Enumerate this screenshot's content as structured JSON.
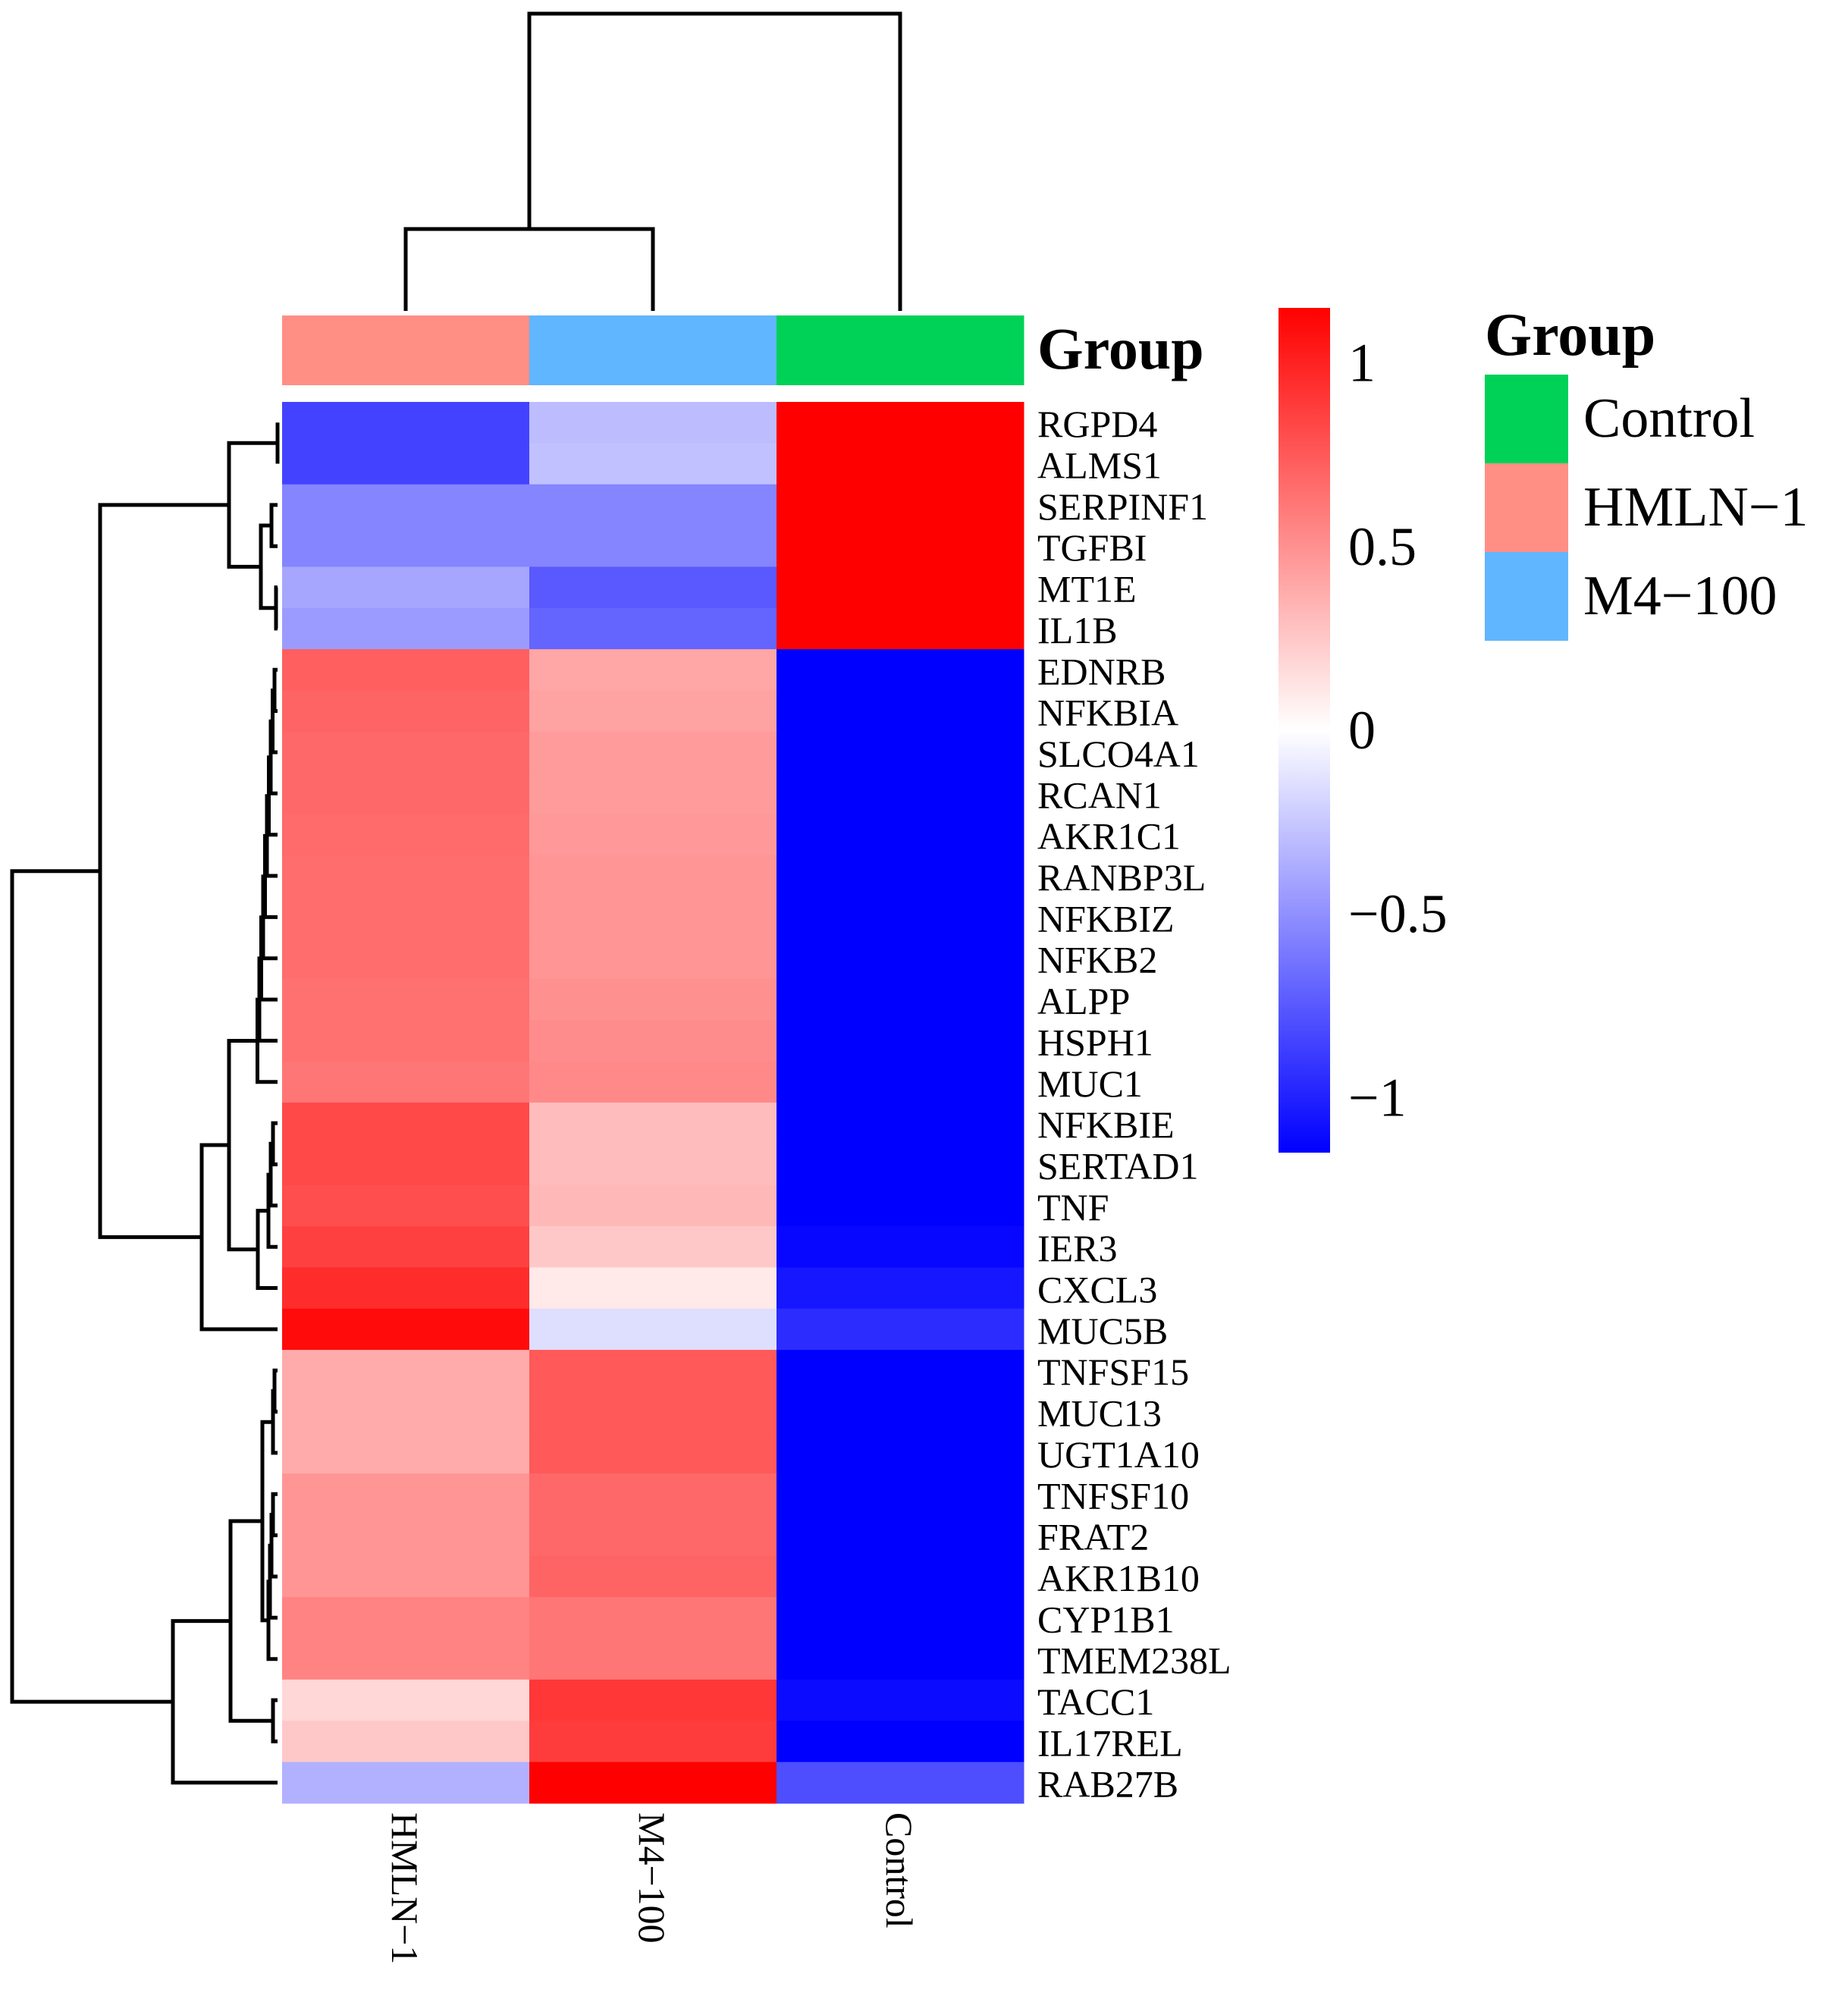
{
  "chart_data": {
    "type": "heatmap",
    "columns": [
      "HMLN-1",
      "M4−100",
      "Control"
    ],
    "rows": [
      "RGPD4",
      "ALMS1",
      "SERPINF1",
      "TGFBI",
      "MT1E",
      "IL1B",
      "EDNRB",
      "NFKBIA",
      "SLCO4A1",
      "RCAN1",
      "AKR1C1",
      "RANBP3L",
      "NFKBIZ",
      "NFKB2",
      "ALPP",
      "HSPH1",
      "MUC1",
      "NFKBIE",
      "SERTAD1",
      "TNF",
      "IER3",
      "CXCL3",
      "MUC5B",
      "TNFSF15",
      "MUC13",
      "UGT1A10",
      "TNFSF10",
      "FRAT2",
      "AKR1B10",
      "CYP1B1",
      "TMEM238L",
      "TACC1",
      "IL17REL",
      "RAB27B"
    ],
    "values": [
      [
        -0.85,
        -0.3,
        1.15
      ],
      [
        -0.85,
        -0.28,
        1.15
      ],
      [
        -0.55,
        -0.55,
        1.15
      ],
      [
        -0.55,
        -0.55,
        1.15
      ],
      [
        -0.4,
        -0.75,
        1.15
      ],
      [
        -0.45,
        -0.7,
        1.15
      ],
      [
        0.72,
        0.4,
        -1.15
      ],
      [
        0.7,
        0.42,
        -1.15
      ],
      [
        0.68,
        0.45,
        -1.15
      ],
      [
        0.68,
        0.45,
        -1.15
      ],
      [
        0.67,
        0.46,
        -1.15
      ],
      [
        0.66,
        0.48,
        -1.15
      ],
      [
        0.66,
        0.48,
        -1.15
      ],
      [
        0.66,
        0.48,
        -1.15
      ],
      [
        0.64,
        0.5,
        -1.15
      ],
      [
        0.64,
        0.52,
        -1.15
      ],
      [
        0.62,
        0.53,
        -1.15
      ],
      [
        0.82,
        0.3,
        -1.15
      ],
      [
        0.82,
        0.3,
        -1.15
      ],
      [
        0.8,
        0.32,
        -1.15
      ],
      [
        0.86,
        0.25,
        -1.12
      ],
      [
        0.95,
        0.1,
        -1.05
      ],
      [
        1.1,
        -0.15,
        -0.95
      ],
      [
        0.38,
        0.75,
        -1.15
      ],
      [
        0.38,
        0.75,
        -1.15
      ],
      [
        0.38,
        0.75,
        -1.15
      ],
      [
        0.48,
        0.68,
        -1.15
      ],
      [
        0.48,
        0.68,
        -1.15
      ],
      [
        0.48,
        0.7,
        -1.15
      ],
      [
        0.56,
        0.62,
        -1.15
      ],
      [
        0.56,
        0.62,
        -1.15
      ],
      [
        0.18,
        0.9,
        -1.1
      ],
      [
        0.25,
        0.88,
        -1.15
      ],
      [
        -0.35,
        1.15,
        -0.8
      ]
    ],
    "group_annotation": {
      "title": "Group",
      "assignments": [
        "HMLN-1",
        "M4−100",
        "Control"
      ]
    },
    "colorbar": {
      "range": [
        -1.15,
        1.15
      ],
      "ticks": [
        1,
        0.5,
        0,
        -0.5,
        -1
      ],
      "tick_labels": [
        "1",
        "0.5",
        "0",
        "−0.5",
        "−1"
      ],
      "low_color": "#0000FF",
      "mid_color": "#FFFFFF",
      "high_color": "#FF0000"
    },
    "legend": {
      "title": "Group",
      "items": [
        {
          "label": "Control",
          "color": "#00D157"
        },
        {
          "label": "HMLN−1",
          "color": "#FF8F85"
        },
        {
          "label": "M4−100",
          "color": "#60B6FF"
        }
      ],
      "position": "right"
    },
    "column_labels": [
      "HMLN−1",
      "M4−100",
      "Control"
    ],
    "column_dendrogram": "((HMLN-1,M4-100),Control)",
    "row_dendrogram": "(((RGPD4,ALMS1),(SERPINF1,TGFBI),(MT1E,IL1B)),((((EDNRB..MUC1),(NFKBIE..IER3,CXCL3)),MUC5B),(((TNFSF15..UGT1A10),(TNFSF10..TMEM238L),(TACC1,IL17REL)),RAB27B)))"
  },
  "group_colors": {
    "HMLN-1": "#FF8F85",
    "M4−100": "#60B6FF",
    "Control": "#00D157"
  },
  "annotation_label": "Group"
}
